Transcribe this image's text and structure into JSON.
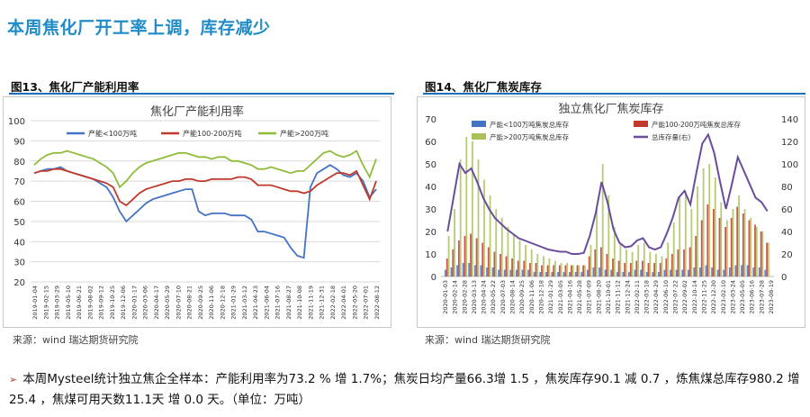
{
  "page": {
    "title": "本周焦化厂开工率上调，库存减少",
    "summary": "本周Mysteel统计独立焦企全样本：产能利用率为73.2 % 增 1.7%；焦炭日均产量66.3增 1.5 ，焦炭库存90.1 减 0.7 ，炼焦煤总库存980.2 增 25.4 ，焦煤可用天数11.1天 增 0.0 天。（单位：万吨）",
    "colors": {
      "title": "#1f8cc8",
      "caption_rule": "#1f6fb5"
    }
  },
  "figures": [
    {
      "caption": "图13、焦化厂产能利用率",
      "source": "来源：wind   瑞达期货研究院",
      "chart_data": {
        "type": "line",
        "title": "焦化厂产能利用率",
        "ylim": [
          20,
          100
        ],
        "yticks": [
          "100",
          "90",
          "80",
          "70",
          "60",
          "50",
          "40",
          "30",
          "20"
        ],
        "xticks": [
          "2019-01-04",
          "2019-02-15",
          "2019-03-29",
          "2019-05-10",
          "2019-06-21",
          "2019-08-02",
          "2019-09-12",
          "2019-10-25",
          "2019-12-06",
          "2020-01-17",
          "2020-03-06",
          "2020-04-17",
          "2020-05-29",
          "2020-07-10",
          "2020-08-21",
          "2020-09-25",
          "2020-11-06",
          "2020-12-18",
          "2021-01-29",
          "2021-03-12",
          "2021-04-23",
          "2021-06-04",
          "2021-07-16",
          "2021-08-27",
          "2021-10-08",
          "2021-11-19",
          "2021-12-31",
          "2022-02-18",
          "2022-04-01",
          "2022-05-20",
          "2022-07-01",
          "2022-08-12"
        ],
        "series": [
          {
            "name": "产能<100万吨",
            "color": "#4472c4",
            "values": [
              74,
              75,
              76,
              76,
              77,
              75,
              74,
              73,
              72,
              71,
              69,
              67,
              62,
              55,
              50,
              53,
              56,
              59,
              61,
              62,
              63,
              64,
              65,
              66,
              66,
              55,
              53,
              54,
              54,
              54,
              53,
              53,
              53,
              51,
              45,
              45,
              44,
              43,
              42,
              37,
              33,
              32,
              67,
              74,
              76,
              78,
              76,
              73,
              72,
              74,
              70,
              62,
              66
            ]
          },
          {
            "name": "产能100-200万吨",
            "color": "#c0392b",
            "values": [
              74,
              75,
              75,
              76,
              76,
              75,
              74,
              73,
              72,
              71,
              70,
              69,
              67,
              60,
              58,
              61,
              64,
              66,
              67,
              68,
              69,
              70,
              70,
              71,
              71,
              70,
              70,
              71,
              71,
              71,
              71,
              72,
              72,
              71,
              68,
              68,
              68,
              67,
              66,
              65,
              65,
              64,
              65,
              68,
              70,
              72,
              74,
              74,
              73,
              75,
              68,
              61,
              70
            ]
          },
          {
            "name": "产能>200万吨",
            "color": "#8fbc3b",
            "values": [
              78,
              81,
              83,
              84,
              84,
              85,
              84,
              83,
              82,
              81,
              79,
              77,
              74,
              67,
              70,
              74,
              77,
              79,
              80,
              81,
              82,
              83,
              84,
              84,
              83,
              82,
              82,
              81,
              82,
              82,
              80,
              80,
              79,
              78,
              76,
              76,
              77,
              76,
              75,
              74,
              75,
              75,
              78,
              81,
              84,
              85,
              83,
              82,
              83,
              85,
              78,
              72,
              81
            ]
          }
        ]
      }
    },
    {
      "caption": "图14、焦化厂焦炭库存",
      "source": "来源：wind   瑞达期货研究院",
      "chart_data": {
        "type": "bar",
        "title": "独立焦化厂焦炭库存",
        "ylim": [
          0,
          70
        ],
        "y2lim": [
          0,
          140
        ],
        "yticks": [
          "70",
          "60",
          "50",
          "40",
          "30",
          "20",
          "10",
          "0"
        ],
        "y2ticks": [
          "140",
          "120",
          "100",
          "80",
          "60",
          "40",
          "20",
          "0"
        ],
        "xticks": [
          "2020-01-03",
          "2020-02-14",
          "2020-02-28",
          "2020-03-13",
          "2020-04-24",
          "2020-05-22",
          "2020-07-03",
          "2020-08-14",
          "2020-09-25",
          "2020-11-06",
          "2020-12-18",
          "2021-01-29",
          "2021-03-05",
          "2021-04-16",
          "2021-05-28",
          "2021-07-09",
          "2021-08-20",
          "2021-10-01",
          "2021-11-12",
          "2021-12-24",
          "2022-02-11",
          "2022-03-18",
          "2022-04-29",
          "2022-06-10",
          "2022-07-22",
          "2022-09-02",
          "2022-10-14",
          "2022-11-25",
          "2022-12-30",
          "2023-02-10",
          "2023-03-24",
          "2023-05-05",
          "2023-06-16",
          "2023-07-28",
          "2023-08-19"
        ],
        "series": [
          {
            "name": "产能<100万吨焦炭总库存",
            "color": "#4472c4",
            "values": [
              3,
              4,
              5,
              6,
              6,
              5,
              5,
              4,
              4,
              3,
              3,
              3,
              3,
              3,
              3,
              2,
              2,
              2,
              2,
              2,
              2,
              2,
              2,
              2,
              3,
              4,
              4,
              3,
              3,
              2,
              2,
              2,
              3,
              3,
              2,
              2,
              2,
              3,
              3,
              3,
              3,
              3,
              4,
              4,
              5,
              4,
              3,
              3,
              4,
              5,
              5,
              5,
              4,
              4,
              3
            ]
          },
          {
            "name": "产能100-200万吨焦炭总库存",
            "color": "#c0392b",
            "values": [
              8,
              12,
              16,
              18,
              19,
              17,
              15,
              13,
              11,
              10,
              9,
              8,
              7,
              7,
              6,
              6,
              5,
              5,
              5,
              5,
              5,
              5,
              5,
              5,
              9,
              12,
              13,
              10,
              8,
              7,
              6,
              6,
              7,
              7,
              6,
              6,
              6,
              8,
              10,
              12,
              12,
              13,
              18,
              25,
              32,
              30,
              26,
              22,
              26,
              31,
              28,
              25,
              23,
              20,
              15
            ]
          },
          {
            "name": "产能>200万吨焦炭总库存",
            "color": "#a9c35a",
            "values": [
              18,
              30,
              52,
              62,
              60,
              52,
              43,
              36,
              30,
              26,
              22,
              19,
              16,
              14,
              12,
              10,
              9,
              8,
              7,
              6,
              6,
              5,
              5,
              5,
              14,
              30,
              50,
              36,
              22,
              15,
              12,
              11,
              14,
              15,
              11,
              10,
              9,
              15,
              24,
              35,
              38,
              30,
              40,
              48,
              50,
              44,
              33,
              25,
              30,
              36,
              30,
              26,
              22,
              20,
              15
            ]
          },
          {
            "name": "总库存量(右)",
            "color": "#6a4c9c",
            "axis": "right",
            "values": [
              40,
              70,
              100,
              92,
              96,
              84,
              70,
              60,
              52,
              47,
              42,
              38,
              34,
              32,
              30,
              28,
              26,
              24,
              23,
              22,
              22,
              20,
              20,
              21,
              36,
              56,
              84,
              66,
              42,
              30,
              26,
              27,
              32,
              34,
              26,
              24,
              26,
              38,
              52,
              70,
              76,
              64,
              92,
              118,
              126,
              110,
              84,
              60,
              82,
              106,
              94,
              82,
              70,
              66,
              58
            ]
          }
        ]
      }
    }
  ]
}
